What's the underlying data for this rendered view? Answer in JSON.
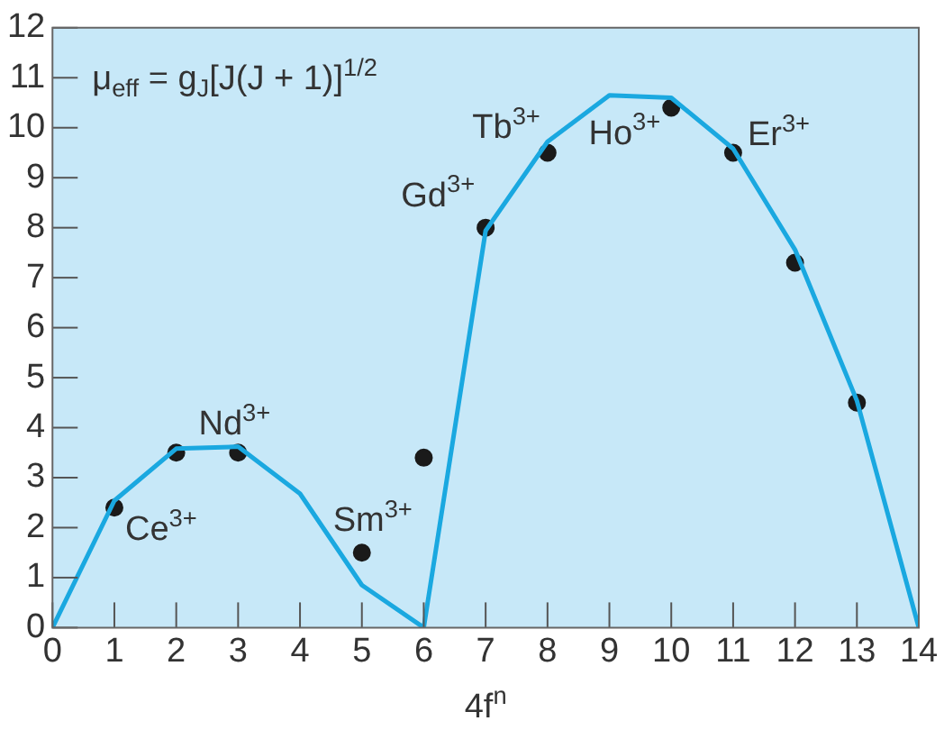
{
  "chart_data": {
    "type": "line",
    "xlabel": "4f$^{n}$",
    "x": [
      0,
      1,
      2,
      3,
      4,
      5,
      6,
      7,
      8,
      9,
      10,
      11,
      12,
      13,
      14
    ],
    "xlim": [
      0,
      14
    ],
    "xticks": [
      0,
      1,
      2,
      3,
      4,
      5,
      6,
      7,
      8,
      9,
      10,
      11,
      12,
      13,
      14
    ],
    "ylim": [
      0,
      12
    ],
    "yticks": [
      0,
      1,
      2,
      3,
      4,
      5,
      6,
      7,
      8,
      9,
      10,
      11,
      12
    ],
    "grid": false,
    "legend": false,
    "series": [
      {
        "type": "line",
        "marker": "none",
        "color": "#1aa8e0",
        "values": [
          0,
          2.54,
          3.58,
          3.62,
          2.68,
          0.85,
          0,
          7.94,
          9.72,
          10.65,
          10.6,
          9.58,
          7.56,
          4.54,
          0
        ]
      },
      {
        "type": "scatter",
        "marker": "circle",
        "color": "#1a1a1a",
        "x": [
          1,
          2,
          3,
          5,
          6,
          7,
          8,
          10,
          11,
          12,
          13
        ],
        "values": [
          2.4,
          3.5,
          3.5,
          1.5,
          3.4,
          8.0,
          9.5,
          10.4,
          9.5,
          7.3,
          4.5
        ]
      }
    ],
    "annotations": [
      "μ$_{eff}$ = g$_{J}$[J(J + 1)]$^{1/2}$",
      {
        "text": "Ce$^{3+}$",
        "x": 1,
        "y": 2.4
      },
      {
        "text": "Nd$^{3+}$",
        "x": 3,
        "y": 3.5
      },
      {
        "text": "Sm$^{3+}$",
        "x": 5,
        "y": 1.5
      },
      {
        "text": "Gd$^{3+}$",
        "x": 7,
        "y": 8.0
      },
      {
        "text": "Tb$^{3+}$",
        "x": 8,
        "y": 9.5
      },
      {
        "text": "Ho$^{3+}$",
        "x": 10,
        "y": 10.4
      },
      {
        "text": "Er$^{3+}$",
        "x": 11,
        "y": 9.5
      }
    ]
  }
}
